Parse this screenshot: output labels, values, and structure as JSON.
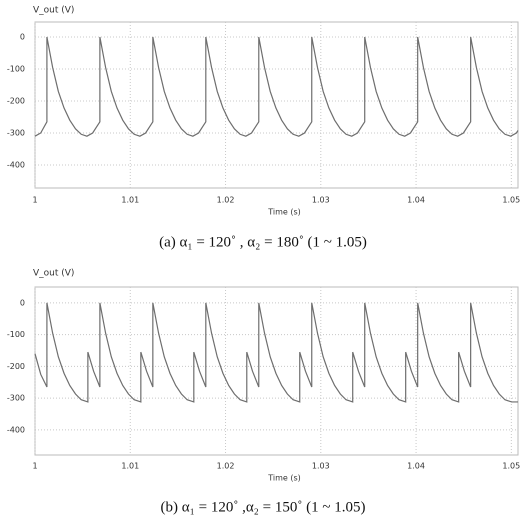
{
  "chart_data": [
    {
      "type": "line",
      "y_label": "V_out (V)",
      "x_label": "Time (s)",
      "caption": "(a)  α₁ = 120˚ , α₂ = 180˚ (1 ~ 1.05)",
      "color": "#6e6e6e",
      "grid": true,
      "xlim": [
        1,
        1.0507
      ],
      "xticks": [
        1,
        1.01,
        1.02,
        1.03,
        1.04,
        1.05
      ],
      "ylim": [
        -472,
        47
      ],
      "yticks": [
        0,
        -100,
        -200,
        -300,
        -400
      ],
      "x": [
        1,
        1.0006,
        1.00125,
        1.00125,
        1.00185,
        1.00245,
        1.00305,
        1.00365,
        1.00425,
        1.00485,
        1.00545,
        1.00605,
        1.00681,
        1.00681,
        1.00741,
        1.00801,
        1.00861,
        1.00921,
        1.00981,
        1.01041,
        1.01101,
        1.01161,
        1.01237,
        1.01237,
        1.01297,
        1.01357,
        1.01417,
        1.01477,
        1.01537,
        1.01597,
        1.01657,
        1.01717,
        1.01793,
        1.01793,
        1.01853,
        1.01913,
        1.01973,
        1.02033,
        1.02093,
        1.02153,
        1.02213,
        1.02273,
        1.02349,
        1.02349,
        1.02409,
        1.02469,
        1.02529,
        1.02589,
        1.02649,
        1.02709,
        1.02769,
        1.02829,
        1.02905,
        1.02905,
        1.02965,
        1.03025,
        1.03085,
        1.03145,
        1.03205,
        1.03265,
        1.03325,
        1.03385,
        1.03461,
        1.03461,
        1.03521,
        1.03581,
        1.03641,
        1.03701,
        1.03761,
        1.03821,
        1.03881,
        1.03941,
        1.04017,
        1.04017,
        1.04077,
        1.04137,
        1.04197,
        1.04257,
        1.04317,
        1.04377,
        1.04437,
        1.04497,
        1.04573,
        1.04573,
        1.04633,
        1.04693,
        1.04753,
        1.04813,
        1.04873,
        1.04933,
        1.04993,
        1.05053,
        1.0507
      ],
      "values": [
        -310,
        -300,
        -265,
        0,
        -95,
        -170,
        -222,
        -260,
        -287,
        -304,
        -310,
        -300,
        -265,
        0,
        -95,
        -170,
        -222,
        -260,
        -287,
        -304,
        -310,
        -300,
        -265,
        0,
        -95,
        -170,
        -222,
        -260,
        -287,
        -304,
        -310,
        -300,
        -265,
        0,
        -95,
        -170,
        -222,
        -260,
        -287,
        -304,
        -310,
        -300,
        -265,
        0,
        -95,
        -170,
        -222,
        -260,
        -287,
        -304,
        -310,
        -300,
        -265,
        0,
        -95,
        -170,
        -222,
        -260,
        -287,
        -304,
        -310,
        -300,
        -265,
        0,
        -95,
        -170,
        -222,
        -260,
        -287,
        -304,
        -310,
        -300,
        -265,
        0,
        -95,
        -170,
        -222,
        -260,
        -287,
        -304,
        -310,
        -300,
        -265,
        0,
        -95,
        -170,
        -222,
        -260,
        -287,
        -304,
        -310,
        -300,
        -292
      ]
    },
    {
      "type": "line",
      "y_label": "V_out (V)",
      "x_label": "Time (s)",
      "caption": "(b)  α₁ = 120˚ ,α₂ = 150˚ (1 ~ 1.05)",
      "color": "#6e6e6e",
      "grid": true,
      "xlim": [
        1,
        1.0507
      ],
      "xticks": [
        1,
        1.01,
        1.02,
        1.03,
        1.04,
        1.05
      ],
      "ylim": [
        -479,
        50
      ],
      "yticks": [
        0,
        -100,
        -200,
        -300,
        -400
      ],
      "x": [
        1,
        1.0006,
        1.00125,
        1.00125,
        1.00185,
        1.00245,
        1.00305,
        1.00365,
        1.00425,
        1.00485,
        1.00555,
        1.00555,
        1.00615,
        1.00681,
        1.00681,
        1.00741,
        1.00801,
        1.00861,
        1.00921,
        1.00981,
        1.01041,
        1.01111,
        1.01111,
        1.01171,
        1.01237,
        1.01237,
        1.01297,
        1.01357,
        1.01417,
        1.01477,
        1.01537,
        1.01597,
        1.01667,
        1.01667,
        1.01727,
        1.01793,
        1.01793,
        1.01853,
        1.01913,
        1.01973,
        1.02033,
        1.02093,
        1.02153,
        1.02223,
        1.02223,
        1.02283,
        1.02349,
        1.02349,
        1.02409,
        1.02469,
        1.02529,
        1.02589,
        1.02649,
        1.02709,
        1.02779,
        1.02779,
        1.02839,
        1.02905,
        1.02905,
        1.02965,
        1.03025,
        1.03085,
        1.03145,
        1.03205,
        1.03265,
        1.03335,
        1.03335,
        1.03395,
        1.03461,
        1.03461,
        1.03521,
        1.03581,
        1.03641,
        1.03701,
        1.03761,
        1.03821,
        1.03891,
        1.03891,
        1.03951,
        1.04017,
        1.04017,
        1.04077,
        1.04137,
        1.04197,
        1.04257,
        1.04317,
        1.04377,
        1.04447,
        1.04447,
        1.04507,
        1.04573,
        1.04573,
        1.04633,
        1.04693,
        1.04753,
        1.04813,
        1.04873,
        1.04933,
        1.05003,
        1.0507
      ],
      "values": [
        -160,
        -225,
        -265,
        0,
        -95,
        -170,
        -222,
        -260,
        -287,
        -305,
        -312,
        -155,
        -215,
        -265,
        0,
        -95,
        -170,
        -222,
        -260,
        -287,
        -305,
        -312,
        -155,
        -215,
        -265,
        0,
        -95,
        -170,
        -222,
        -260,
        -287,
        -305,
        -312,
        -155,
        -215,
        -265,
        0,
        -95,
        -170,
        -222,
        -260,
        -287,
        -305,
        -312,
        -155,
        -215,
        -265,
        0,
        -95,
        -170,
        -222,
        -260,
        -287,
        -305,
        -312,
        -155,
        -215,
        -265,
        0,
        -95,
        -170,
        -222,
        -260,
        -287,
        -305,
        -312,
        -155,
        -215,
        -265,
        0,
        -95,
        -170,
        -222,
        -260,
        -287,
        -305,
        -312,
        -155,
        -215,
        -265,
        0,
        -95,
        -170,
        -222,
        -260,
        -287,
        -305,
        -312,
        -155,
        -215,
        -265,
        0,
        -95,
        -170,
        -222,
        -260,
        -287,
        -305,
        -312,
        -312
      ]
    }
  ]
}
